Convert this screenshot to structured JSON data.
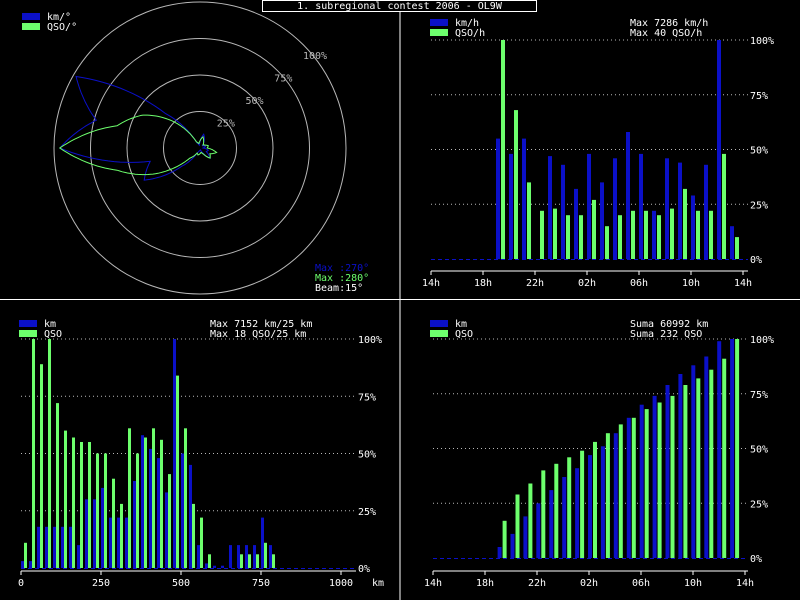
{
  "title": "1. subregional contest 2006 - OL9W",
  "colors": {
    "blue": "#0b10c8",
    "green": "#6dff6d",
    "grid": "#b8b8b8",
    "border": "#ffffff",
    "bg": "#000000"
  },
  "polar": {
    "legend": [
      "km/°",
      "QSO/°"
    ],
    "ring_labels": [
      "25%",
      "50%",
      "75%",
      "100%"
    ],
    "info": [
      "Max :270°",
      "Max :280°",
      "Beam:15°"
    ],
    "chart_data": {
      "type": "polar",
      "theta_step_deg": 15,
      "km_r": [
        0.04,
        0.1,
        0.06,
        0.02,
        0.03,
        0.04,
        0.02,
        0.06,
        0.05,
        0.1,
        0.04,
        0.01,
        0.02,
        0.02,
        0.04,
        0.18,
        0.45,
        0.36,
        0.98,
        0.75,
        1.0,
        0.34,
        0.04,
        0.02
      ],
      "qso_r": [
        0.05,
        0.08,
        0.05,
        0.03,
        0.04,
        0.06,
        0.05,
        0.12,
        0.08,
        0.1,
        0.05,
        0.03,
        0.04,
        0.05,
        0.04,
        0.1,
        0.36,
        0.6,
        0.98,
        0.6,
        0.46,
        0.26,
        0.05,
        0.03
      ]
    }
  },
  "hours": {
    "legend": [
      "km/h",
      "QSO/h"
    ],
    "max_lines": [
      "Max  7286 km/h",
      "Max   40 QSO/h"
    ],
    "y_ticks": [
      "0%",
      "25%",
      "50%",
      "75%",
      "100%"
    ],
    "x_ticks": [
      "14h",
      "18h",
      "22h",
      "02h",
      "06h",
      "10h",
      "14h"
    ],
    "chart_data": {
      "type": "bar",
      "x": [
        "14h",
        "15h",
        "16h",
        "17h",
        "18h",
        "19h",
        "20h",
        "21h",
        "22h",
        "23h",
        "00h",
        "01h",
        "02h",
        "03h",
        "04h",
        "05h",
        "06h",
        "07h",
        "08h",
        "09h",
        "10h",
        "11h",
        "12h",
        "13h"
      ],
      "series": [
        {
          "name": "km/h",
          "values": [
            0,
            0,
            0,
            0,
            0,
            55,
            48,
            55,
            0,
            47,
            43,
            32,
            48,
            35,
            46,
            58,
            48,
            22,
            46,
            44,
            29,
            43,
            100,
            15
          ]
        },
        {
          "name": "QSO/h",
          "values": [
            0,
            0,
            0,
            0,
            0,
            100,
            68,
            35,
            22,
            23,
            20,
            20,
            27,
            15,
            20,
            22,
            22,
            20,
            23,
            32,
            22,
            22,
            48,
            10
          ]
        }
      ],
      "ylim": [
        0,
        100
      ]
    }
  },
  "distance": {
    "legend": [
      "km",
      "QSO"
    ],
    "max_lines": [
      "Max  7152 km/25 km",
      "Max   18 QSO/25 km"
    ],
    "y_ticks": [
      "0%",
      "25%",
      "50%",
      "75%",
      "100%"
    ],
    "x_ticks": [
      "0",
      "250",
      "500",
      "750",
      "1000"
    ],
    "axis_unit": "km",
    "chart_data": {
      "type": "bar",
      "bin_km": 25,
      "x": [
        0,
        25,
        50,
        75,
        100,
        125,
        150,
        175,
        200,
        225,
        250,
        275,
        300,
        325,
        350,
        375,
        400,
        425,
        450,
        475,
        500,
        525,
        550,
        575,
        600,
        625,
        650,
        675,
        700,
        725,
        750,
        775,
        800,
        825,
        850,
        875,
        900,
        925,
        950,
        975
      ],
      "series": [
        {
          "name": "km",
          "values": [
            3,
            3,
            18,
            18,
            18,
            18,
            18,
            10,
            30,
            30,
            35,
            22,
            22,
            22,
            38,
            58,
            52,
            48,
            33,
            100,
            50,
            45,
            10,
            2,
            1,
            1,
            10,
            10,
            10,
            10,
            22,
            10,
            0,
            0,
            0,
            0,
            0,
            0,
            0,
            0
          ]
        },
        {
          "name": "QSO",
          "values": [
            11,
            100,
            89,
            100,
            72,
            60,
            57,
            55,
            55,
            50,
            50,
            39,
            28,
            61,
            50,
            57,
            61,
            56,
            41,
            84,
            61,
            28,
            22,
            6,
            0,
            0,
            0,
            6,
            6,
            6,
            11,
            6,
            0,
            0,
            0,
            0,
            0,
            0,
            0,
            0
          ]
        }
      ],
      "ylim": [
        0,
        100
      ]
    }
  },
  "cumulative": {
    "legend": [
      "km",
      "QSO"
    ],
    "max_lines": [
      "Suma  60992 km",
      "Suma   232 QSO"
    ],
    "y_ticks": [
      "0%",
      "25%",
      "50%",
      "75%",
      "100%"
    ],
    "x_ticks": [
      "14h",
      "18h",
      "22h",
      "02h",
      "06h",
      "10h",
      "14h"
    ],
    "chart_data": {
      "type": "bar",
      "x": [
        "14h",
        "15h",
        "16h",
        "17h",
        "18h",
        "19h",
        "20h",
        "21h",
        "22h",
        "23h",
        "00h",
        "01h",
        "02h",
        "03h",
        "04h",
        "05h",
        "06h",
        "07h",
        "08h",
        "09h",
        "10h",
        "11h",
        "12h",
        "13h"
      ],
      "series": [
        {
          "name": "km",
          "values": [
            0,
            0,
            0,
            0,
            0,
            5,
            11,
            19,
            25,
            31,
            37,
            41,
            47,
            51,
            57,
            64,
            70,
            74,
            79,
            84,
            88,
            92,
            99,
            100
          ]
        },
        {
          "name": "QSO",
          "values": [
            0,
            0,
            0,
            0,
            0,
            17,
            29,
            34,
            40,
            43,
            46,
            49,
            53,
            57,
            61,
            64,
            68,
            71,
            74,
            79,
            82,
            86,
            91,
            100
          ]
        }
      ],
      "ylim": [
        0,
        100
      ]
    }
  }
}
